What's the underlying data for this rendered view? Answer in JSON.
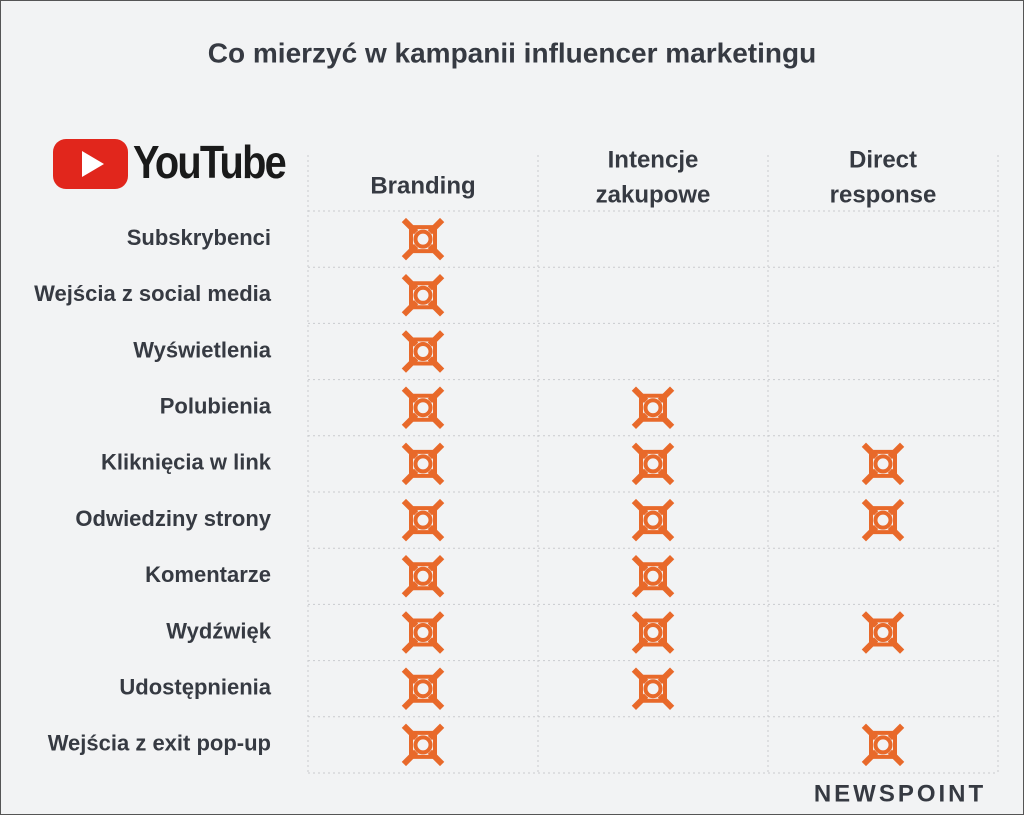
{
  "title": "Co mierzyć w kampanii influencer marketingu",
  "logo": "YouTube",
  "columns": [
    [
      "Branding"
    ],
    [
      "Intencje",
      "zakupowe"
    ],
    [
      "Direct",
      "response"
    ]
  ],
  "rows": [
    {
      "label": "Subskrybenci",
      "marks": [
        true,
        false,
        false
      ]
    },
    {
      "label": "Wejścia z social media",
      "marks": [
        true,
        false,
        false
      ]
    },
    {
      "label": "Wyświetlenia",
      "marks": [
        true,
        false,
        false
      ]
    },
    {
      "label": "Polubienia",
      "marks": [
        true,
        true,
        false
      ]
    },
    {
      "label": "Kliknięcia w link",
      "marks": [
        true,
        true,
        true
      ]
    },
    {
      "label": "Odwiedziny strony",
      "marks": [
        true,
        true,
        true
      ]
    },
    {
      "label": "Komentarze",
      "marks": [
        true,
        true,
        false
      ]
    },
    {
      "label": "Wydźwięk",
      "marks": [
        true,
        true,
        true
      ]
    },
    {
      "label": "Udostępnienia",
      "marks": [
        true,
        true,
        false
      ]
    },
    {
      "label": "Wejścia z exit pop-up",
      "marks": [
        true,
        false,
        true
      ]
    }
  ],
  "footer": "NEWSPOINT"
}
